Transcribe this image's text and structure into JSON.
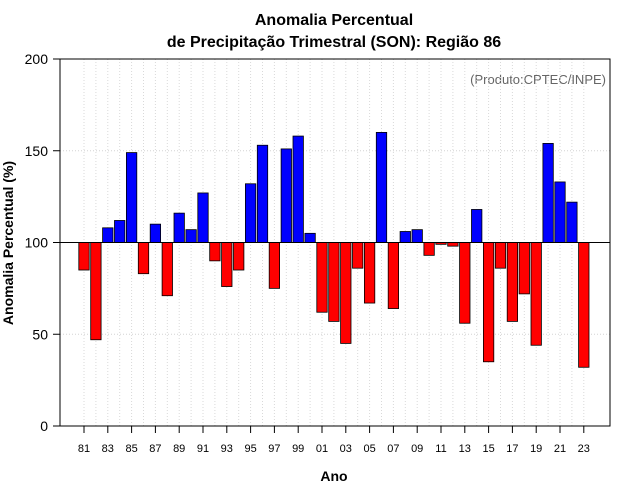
{
  "chart_data": {
    "type": "bar",
    "title": "Anomalia Percentual",
    "subtitle": "de Precipitação Trimestral (SON): Região 86",
    "xlabel": "Ano",
    "ylabel": "Anomalia Percentual (%)",
    "credit": "(Produto:CPTEC/INPE)",
    "ylim": [
      0,
      200
    ],
    "yticks": [
      0,
      50,
      100,
      150,
      200
    ],
    "baseline": 100,
    "grid": true,
    "colors": {
      "above": "#0000ff",
      "below": "#ff0000",
      "outline": "#000000"
    },
    "categories": [
      "1981",
      "1982",
      "1983",
      "1984",
      "1985",
      "1986",
      "1987",
      "1988",
      "1989",
      "1990",
      "1991",
      "1992",
      "1993",
      "1994",
      "1995",
      "1996",
      "1997",
      "1998",
      "1999",
      "2000",
      "2001",
      "2002",
      "2003",
      "2004",
      "2005",
      "2006",
      "2007",
      "2008",
      "2009",
      "2010",
      "2011",
      "2012",
      "2013",
      "2014",
      "2015",
      "2016",
      "2017",
      "2018",
      "2019",
      "2020",
      "2021",
      "2022",
      "2023"
    ],
    "xtick_labels": [
      "81",
      "83",
      "85",
      "87",
      "89",
      "91",
      "93",
      "95",
      "97",
      "99",
      "01",
      "03",
      "05",
      "07",
      "09",
      "11",
      "13",
      "15",
      "17",
      "19",
      "21",
      "23"
    ],
    "values": [
      85,
      47,
      108,
      112,
      149,
      83,
      110,
      71,
      116,
      107,
      127,
      90,
      76,
      85,
      132,
      153,
      75,
      151,
      158,
      105,
      62,
      57,
      45,
      86,
      67,
      160,
      64,
      106,
      107,
      93,
      99,
      98,
      56,
      118,
      35,
      86,
      57,
      72,
      44,
      154,
      133,
      122,
      32
    ]
  }
}
